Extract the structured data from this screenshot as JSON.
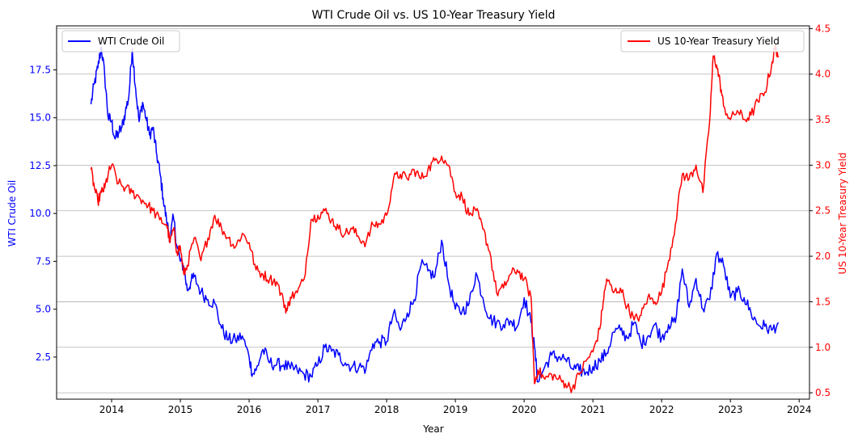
{
  "chart_data": {
    "type": "line",
    "title": "WTI Crude Oil vs. US 10-Year Treasury Yield",
    "xlabel": "Year",
    "ylabel_left": "WTI Crude Oil",
    "ylabel_right": "US 10-Year Treasury Yield",
    "xlim": [
      2013.2,
      2024.15
    ],
    "ylim_left": [
      0.3,
      19.8
    ],
    "ylim_right": [
      0.43,
      4.53
    ],
    "x_ticks": [
      2014,
      2015,
      2016,
      2017,
      2018,
      2019,
      2020,
      2021,
      2022,
      2023,
      2024
    ],
    "x_tick_labels": [
      "2014",
      "2015",
      "2016",
      "2017",
      "2018",
      "2019",
      "2020",
      "2021",
      "2022",
      "2023",
      "2024"
    ],
    "y_left_ticks": [
      2.5,
      5.0,
      7.5,
      10.0,
      12.5,
      15.0,
      17.5
    ],
    "y_left_tick_labels": [
      "2.5",
      "5.0",
      "7.5",
      "10.0",
      "12.5",
      "15.0",
      "17.5"
    ],
    "y_right_ticks": [
      0.5,
      1.0,
      1.5,
      2.0,
      2.5,
      3.0,
      3.5,
      4.0,
      4.5
    ],
    "y_right_tick_labels": [
      "0.5",
      "1.0",
      "1.5",
      "2.0",
      "2.5",
      "3.0",
      "3.5",
      "4.0",
      "4.5"
    ],
    "grid": "horizontal lines at right-axis ticks",
    "legend_left": {
      "placement": "upper-left",
      "label": "WTI Crude Oil"
    },
    "legend_right": {
      "placement": "upper-right",
      "label": "US 10-Year Treasury Yield"
    },
    "series": [
      {
        "name": "WTI Crude Oil",
        "axis": "left",
        "color": "#0000ff",
        "x": [
          2013.7,
          2013.75,
          2013.8,
          2013.85,
          2013.9,
          2013.95,
          2014.0,
          2014.05,
          2014.1,
          2014.15,
          2014.2,
          2014.25,
          2014.3,
          2014.35,
          2014.4,
          2014.45,
          2014.5,
          2014.55,
          2014.6,
          2014.65,
          2014.7,
          2014.75,
          2014.8,
          2014.85,
          2014.9,
          2014.95,
          2015.0,
          2015.05,
          2015.1,
          2015.15,
          2015.2,
          2015.3,
          2015.4,
          2015.5,
          2015.6,
          2015.7,
          2015.8,
          2015.9,
          2016.0,
          2016.05,
          2016.1,
          2016.2,
          2016.3,
          2016.4,
          2016.5,
          2016.6,
          2016.7,
          2016.8,
          2016.9,
          2017.0,
          2017.1,
          2017.2,
          2017.3,
          2017.4,
          2017.5,
          2017.6,
          2017.7,
          2017.8,
          2017.9,
          2018.0,
          2018.1,
          2018.2,
          2018.3,
          2018.4,
          2018.5,
          2018.6,
          2018.7,
          2018.8,
          2018.9,
          2019.0,
          2019.1,
          2019.2,
          2019.3,
          2019.4,
          2019.5,
          2019.6,
          2019.7,
          2019.8,
          2019.9,
          2020.0,
          2020.1,
          2020.15,
          2020.2,
          2020.3,
          2020.4,
          2020.5,
          2020.6,
          2020.7,
          2020.8,
          2020.9,
          2021.0,
          2021.1,
          2021.2,
          2021.3,
          2021.4,
          2021.5,
          2021.6,
          2021.7,
          2021.8,
          2021.9,
          2022.0,
          2022.1,
          2022.2,
          2022.3,
          2022.4,
          2022.5,
          2022.6,
          2022.7,
          2022.8,
          2022.9,
          2023.0,
          2023.1,
          2023.2,
          2023.3,
          2023.4,
          2023.5,
          2023.6,
          2023.7
        ],
        "y": [
          15.7,
          16.8,
          17.6,
          18.7,
          17.2,
          15.0,
          14.8,
          13.9,
          14.2,
          14.5,
          15.3,
          16.1,
          18.6,
          16.5,
          14.8,
          15.8,
          15.0,
          14.1,
          14.5,
          13.2,
          12.2,
          10.8,
          9.6,
          8.7,
          9.8,
          8.3,
          7.5,
          7.2,
          6.0,
          6.4,
          6.7,
          5.9,
          5.5,
          5.3,
          4.0,
          3.4,
          3.4,
          3.6,
          2.5,
          1.6,
          1.8,
          2.9,
          2.2,
          2.1,
          2.1,
          1.9,
          1.8,
          1.6,
          1.5,
          2.1,
          3.0,
          2.8,
          2.6,
          2.2,
          2.0,
          2.0,
          1.9,
          3.2,
          3.3,
          3.3,
          4.8,
          3.9,
          4.8,
          5.5,
          7.3,
          7.0,
          6.7,
          8.6,
          6.4,
          5.0,
          4.9,
          5.3,
          6.9,
          5.6,
          4.5,
          4.3,
          4.2,
          4.4,
          4.1,
          5.6,
          4.3,
          3.0,
          1.2,
          2.0,
          2.6,
          2.5,
          2.4,
          1.9,
          1.8,
          1.7,
          2.0,
          2.3,
          2.7,
          3.8,
          3.9,
          3.5,
          4.3,
          3.2,
          3.6,
          4.2,
          3.5,
          4.2,
          4.3,
          7.1,
          5.1,
          6.6,
          5.0,
          5.5,
          7.9,
          7.3,
          5.6,
          5.9,
          5.6,
          4.8,
          4.2,
          4.1,
          3.9,
          4.3
        ]
      },
      {
        "name": "US 10-Year Treasury Yield",
        "axis": "right",
        "color": "#ff0000",
        "x": [
          2013.7,
          2013.75,
          2013.8,
          2013.85,
          2013.9,
          2013.95,
          2014.0,
          2014.1,
          2014.2,
          2014.3,
          2014.4,
          2014.5,
          2014.6,
          2014.7,
          2014.8,
          2014.85,
          2014.9,
          2014.95,
          2015.0,
          2015.05,
          2015.1,
          2015.2,
          2015.3,
          2015.4,
          2015.5,
          2015.6,
          2015.7,
          2015.8,
          2015.9,
          2016.0,
          2016.1,
          2016.2,
          2016.3,
          2016.4,
          2016.5,
          2016.55,
          2016.6,
          2016.7,
          2016.8,
          2016.9,
          2017.0,
          2017.1,
          2017.2,
          2017.3,
          2017.4,
          2017.5,
          2017.6,
          2017.7,
          2017.8,
          2017.9,
          2018.0,
          2018.1,
          2018.2,
          2018.3,
          2018.4,
          2018.5,
          2018.6,
          2018.7,
          2018.8,
          2018.9,
          2019.0,
          2019.1,
          2019.2,
          2019.3,
          2019.4,
          2019.5,
          2019.6,
          2019.7,
          2019.8,
          2019.9,
          2020.0,
          2020.1,
          2020.15,
          2020.2,
          2020.3,
          2020.4,
          2020.5,
          2020.6,
          2020.7,
          2020.8,
          2020.9,
          2021.0,
          2021.1,
          2021.15,
          2021.2,
          2021.3,
          2021.4,
          2021.5,
          2021.6,
          2021.7,
          2021.8,
          2021.9,
          2022.0,
          2022.1,
          2022.2,
          2022.3,
          2022.4,
          2022.5,
          2022.6,
          2022.7,
          2022.75,
          2022.8,
          2022.85,
          2022.9,
          2023.0,
          2023.1,
          2023.2,
          2023.3,
          2023.4,
          2023.5,
          2023.6,
          2023.65,
          2023.7
        ],
        "y": [
          2.95,
          2.75,
          2.6,
          2.7,
          2.75,
          2.9,
          3.0,
          2.8,
          2.75,
          2.7,
          2.65,
          2.58,
          2.5,
          2.4,
          2.35,
          2.15,
          2.3,
          2.05,
          2.1,
          1.8,
          1.9,
          2.2,
          1.95,
          2.2,
          2.45,
          2.3,
          2.2,
          2.1,
          2.25,
          2.15,
          1.85,
          1.8,
          1.75,
          1.72,
          1.5,
          1.4,
          1.55,
          1.6,
          1.75,
          2.4,
          2.45,
          2.5,
          2.4,
          2.3,
          2.25,
          2.3,
          2.2,
          2.15,
          2.35,
          2.35,
          2.45,
          2.85,
          2.9,
          2.85,
          2.95,
          2.85,
          2.95,
          3.05,
          3.1,
          3.0,
          2.7,
          2.65,
          2.45,
          2.5,
          2.3,
          2.05,
          1.6,
          1.65,
          1.8,
          1.85,
          1.75,
          1.55,
          0.6,
          0.75,
          0.65,
          0.7,
          0.65,
          0.6,
          0.55,
          0.7,
          0.85,
          0.95,
          1.2,
          1.5,
          1.75,
          1.6,
          1.65,
          1.45,
          1.3,
          1.35,
          1.55,
          1.5,
          1.6,
          1.95,
          2.35,
          2.9,
          2.85,
          3.0,
          2.7,
          3.5,
          4.2,
          4.1,
          3.9,
          3.65,
          3.5,
          3.6,
          3.5,
          3.55,
          3.7,
          3.8,
          4.1,
          4.3,
          4.2
        ]
      }
    ]
  }
}
